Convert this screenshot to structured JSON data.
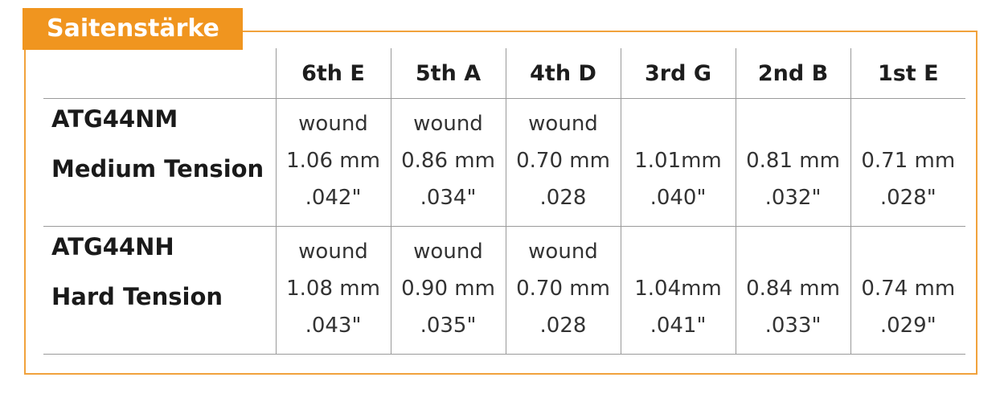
{
  "title": "Saitenstärke",
  "columns": [
    "6th E",
    "5th A",
    "4th D",
    "3rd G",
    "2nd B",
    "1st E"
  ],
  "rows": [
    {
      "model": "ATG44NM",
      "tension": "Medium Tension",
      "cells": [
        {
          "type": "wound",
          "mm": "1.06 mm",
          "inch": ".042\""
        },
        {
          "type": "wound",
          "mm": "0.86 mm",
          "inch": ".034\""
        },
        {
          "type": "wound",
          "mm": "0.70 mm",
          "inch": ".028"
        },
        {
          "type": "",
          "mm": "1.01mm",
          "inch": ".040\""
        },
        {
          "type": "",
          "mm": "0.81 mm",
          "inch": ".032\""
        },
        {
          "type": "",
          "mm": "0.71 mm",
          "inch": ".028\""
        }
      ]
    },
    {
      "model": "ATG44NH",
      "tension": "Hard Tension",
      "cells": [
        {
          "type": "wound",
          "mm": "1.08 mm",
          "inch": ".043\""
        },
        {
          "type": "wound",
          "mm": "0.90 mm",
          "inch": ".035\""
        },
        {
          "type": "wound",
          "mm": "0.70 mm",
          "inch": ".028"
        },
        {
          "type": "",
          "mm": "1.04mm",
          "inch": ".041\""
        },
        {
          "type": "",
          "mm": "0.84 mm",
          "inch": ".033\""
        },
        {
          "type": "",
          "mm": "0.74 mm",
          "inch": ".029\""
        }
      ]
    }
  ],
  "colors": {
    "accent": "#f0951f",
    "frame": "#f1a23c",
    "grid": "#9a9a9a"
  }
}
